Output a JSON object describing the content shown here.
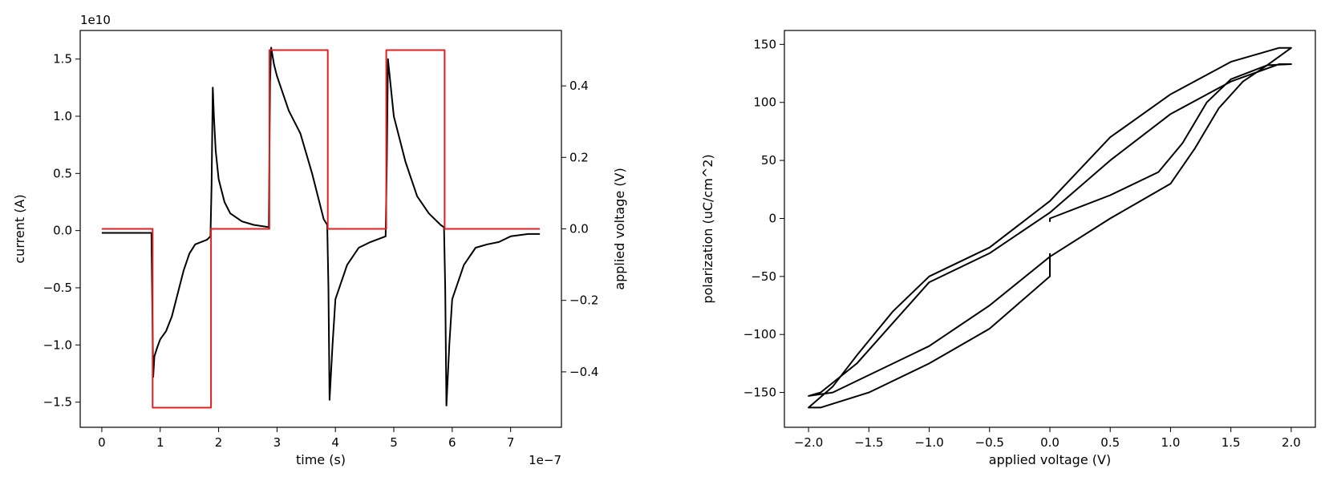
{
  "chart_data": [
    {
      "type": "line",
      "title": "",
      "xlabel": "time (s)",
      "ylabel": "current (A)",
      "y2label": "applied voltage (V)",
      "x_offset_label": "1e−7",
      "y_offset_label": "1e10",
      "xlim": [
        -0.37,
        7.87
      ],
      "ylim": [
        -1.72,
        1.75
      ],
      "y2lim": [
        -0.555,
        0.555
      ],
      "x_ticks": [
        0,
        1,
        2,
        3,
        4,
        5,
        6,
        7
      ],
      "x_tick_labels": [
        "0",
        "1",
        "2",
        "3",
        "4",
        "5",
        "6",
        "7"
      ],
      "y_ticks": [
        1.5,
        1.0,
        0.5,
        0.0,
        -0.5,
        -1.0,
        -1.5
      ],
      "y_tick_labels": [
        "1.5",
        "1.0",
        "0.5",
        "0.0",
        "−0.5",
        "−1.0",
        "−1.5"
      ],
      "y2_ticks": [
        0.4,
        0.2,
        0.0,
        -0.2,
        -0.4
      ],
      "y2_tick_labels": [
        "0.4",
        "0.2",
        "0.0",
        "−0.2",
        "−0.4"
      ],
      "grid": false,
      "series": [
        {
          "color": "#000000",
          "axis": "left",
          "x": [
            0,
            0.3,
            0.6,
            0.85,
            0.88,
            0.9,
            0.95,
            1.0,
            1.1,
            1.2,
            1.3,
            1.4,
            1.5,
            1.6,
            1.7,
            1.8,
            1.86,
            1.88,
            1.9,
            1.92,
            1.95,
            2.0,
            2.1,
            2.2,
            2.4,
            2.6,
            2.86,
            2.88,
            2.9,
            2.95,
            3.0,
            3.2,
            3.4,
            3.6,
            3.8,
            3.86,
            3.88,
            3.9,
            3.95,
            4.0,
            4.2,
            4.4,
            4.6,
            4.86,
            4.88,
            4.9,
            5.0,
            5.2,
            5.4,
            5.6,
            5.8,
            5.86,
            5.88,
            5.9,
            5.95,
            6.0,
            6.2,
            6.4,
            6.6,
            6.8,
            7.0,
            7.3,
            7.5
          ],
          "y": [
            -0.02,
            -0.02,
            -0.02,
            -0.02,
            -1.28,
            -1.1,
            -1.02,
            -0.95,
            -0.88,
            -0.75,
            -0.55,
            -0.35,
            -0.2,
            -0.12,
            -0.1,
            -0.08,
            -0.05,
            0.4,
            1.25,
            1.0,
            0.7,
            0.45,
            0.25,
            0.15,
            0.08,
            0.05,
            0.03,
            1.3,
            1.6,
            1.45,
            1.35,
            1.05,
            0.85,
            0.5,
            0.1,
            0.05,
            -0.5,
            -1.48,
            -1.0,
            -0.6,
            -0.3,
            -0.15,
            -0.1,
            -0.05,
            0.6,
            1.5,
            1.0,
            0.6,
            0.3,
            0.15,
            0.05,
            0.03,
            -0.5,
            -1.53,
            -1.0,
            -0.6,
            -0.3,
            -0.15,
            -0.12,
            -0.1,
            -0.05,
            -0.03,
            -0.03
          ]
        },
        {
          "color": "#e02020",
          "axis": "right",
          "x": [
            0,
            0.87,
            0.87,
            1.87,
            1.87,
            2.87,
            2.87,
            3.87,
            3.87,
            4.87,
            4.87,
            5.87,
            5.87,
            7.5
          ],
          "y": [
            0,
            0,
            -0.5,
            -0.5,
            0,
            0,
            0.5,
            0.5,
            0,
            0,
            0.5,
            0.5,
            0,
            0
          ]
        }
      ]
    },
    {
      "type": "line",
      "title": "",
      "xlabel": "applied voltage (V)",
      "ylabel": "polarization (uC/cm^2)",
      "xlim": [
        -2.2,
        2.2
      ],
      "ylim": [
        -180,
        162
      ],
      "x_ticks": [
        -2.0,
        -1.5,
        -1.0,
        -0.5,
        0.0,
        0.5,
        1.0,
        1.5,
        2.0
      ],
      "x_tick_labels": [
        "−2.0",
        "−1.5",
        "−1.0",
        "−0.5",
        "0.0",
        "0.5",
        "1.0",
        "1.5",
        "2.0"
      ],
      "y_ticks": [
        150,
        100,
        50,
        0,
        -50,
        -100,
        -150
      ],
      "y_tick_labels": [
        "150",
        "100",
        "50",
        "0",
        "−50",
        "−100",
        "−150"
      ],
      "grid": false,
      "series": [
        {
          "color": "#000000",
          "x": [
            0,
            0,
            0.5,
            0.9,
            1.1,
            1.3,
            1.5,
            1.8,
            2.0,
            1.9,
            1.5,
            1.0,
            0.5,
            0,
            -0.5,
            -1.0,
            -1.3,
            -1.6,
            -1.9,
            -2.0,
            -1.8,
            -1.0,
            -0.5,
            0,
            0
          ],
          "y": [
            -3,
            0,
            20,
            40,
            65,
            100,
            120,
            132,
            133,
            133,
            118,
            90,
            50,
            5,
            -30,
            -55,
            -90,
            -125,
            -150,
            -153,
            -150,
            -110,
            -75,
            -33,
            -30
          ]
        },
        {
          "color": "#000000",
          "x": [
            0,
            0,
            0.5,
            1.0,
            1.2,
            1.4,
            1.6,
            1.8,
            2.0,
            1.9,
            1.5,
            1.0,
            0.5,
            0,
            -0.5,
            -1.0,
            -1.3,
            -1.6,
            -1.8,
            -2.0,
            -1.9,
            -1.5,
            -1.0,
            -0.5,
            0,
            0
          ],
          "y": [
            -43,
            -33,
            0,
            30,
            60,
            95,
            118,
            132,
            147,
            147,
            135,
            107,
            70,
            15,
            -25,
            -50,
            -80,
            -118,
            -145,
            -163,
            -163,
            -150,
            -125,
            -95,
            -50,
            -43
          ]
        }
      ]
    }
  ]
}
